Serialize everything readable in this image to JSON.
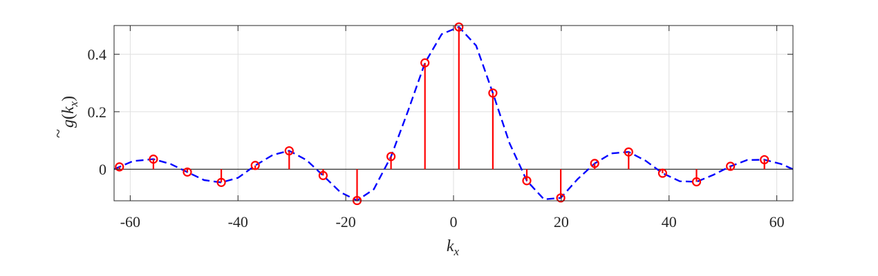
{
  "chart_data": {
    "type": "stem",
    "title": "",
    "xlabel": {
      "base": "k",
      "sub": "x"
    },
    "ylabel": {
      "accent": "~",
      "base": "g",
      "open": "(",
      "arg": "k",
      "sub": "x",
      "close": ")"
    },
    "xlim": [
      -63,
      63
    ],
    "ylim": [
      -0.11,
      0.5
    ],
    "xticks": [
      -60,
      -40,
      -20,
      0,
      20,
      40,
      60
    ],
    "xtick_labels": [
      "-60",
      "-40",
      "-20",
      "0",
      "20",
      "40",
      "60"
    ],
    "yticks": [
      0,
      0.2,
      0.4
    ],
    "ytick_labels": [
      "0",
      "0.2",
      "0.4"
    ],
    "grid": true,
    "series": [
      {
        "kind": "stem",
        "marker": "circle",
        "color": "#ff0000",
        "x": [
          -62,
          -55.7,
          -49.4,
          -43.1,
          -36.8,
          -30.5,
          -24.2,
          -17.9,
          -11.6,
          -5.3,
          1.0,
          7.3,
          13.6,
          19.9,
          26.2,
          32.5,
          38.8,
          45.1,
          51.4,
          57.7
        ],
        "y": [
          0.008,
          0.035,
          -0.01,
          -0.046,
          0.013,
          0.064,
          -0.022,
          -0.109,
          0.044,
          0.37,
          0.495,
          0.265,
          -0.04,
          -0.1,
          0.02,
          0.06,
          -0.014,
          -0.044,
          0.01,
          0.033
        ]
      },
      {
        "kind": "line",
        "style": "dashed",
        "color": "#0000ff",
        "x": [
          -63,
          -62,
          -59.5,
          -55.7,
          -52.5,
          -49.4,
          -46.3,
          -43.1,
          -40,
          -36.8,
          -33.5,
          -30.5,
          -27.3,
          -24.2,
          -21,
          -17.9,
          -14.8,
          -11.6,
          -8.5,
          -5.3,
          -2.2,
          1.0,
          4.2,
          7.3,
          10.4,
          13.6,
          16.8,
          19.9,
          23,
          26.2,
          29.3,
          32.5,
          35.6,
          38.8,
          42,
          45.1,
          48.2,
          51.4,
          54.5,
          57.7,
          60.8,
          63
        ],
        "y": [
          0.0,
          0.008,
          0.028,
          0.035,
          0.018,
          -0.01,
          -0.038,
          -0.046,
          -0.03,
          0.013,
          0.05,
          0.064,
          0.032,
          -0.022,
          -0.08,
          -0.109,
          -0.07,
          0.044,
          0.2,
          0.37,
          0.47,
          0.495,
          0.43,
          0.265,
          0.09,
          -0.04,
          -0.105,
          -0.1,
          -0.035,
          0.02,
          0.055,
          0.06,
          0.03,
          -0.014,
          -0.042,
          -0.044,
          -0.02,
          0.01,
          0.032,
          0.033,
          0.018,
          0.0
        ]
      }
    ]
  }
}
